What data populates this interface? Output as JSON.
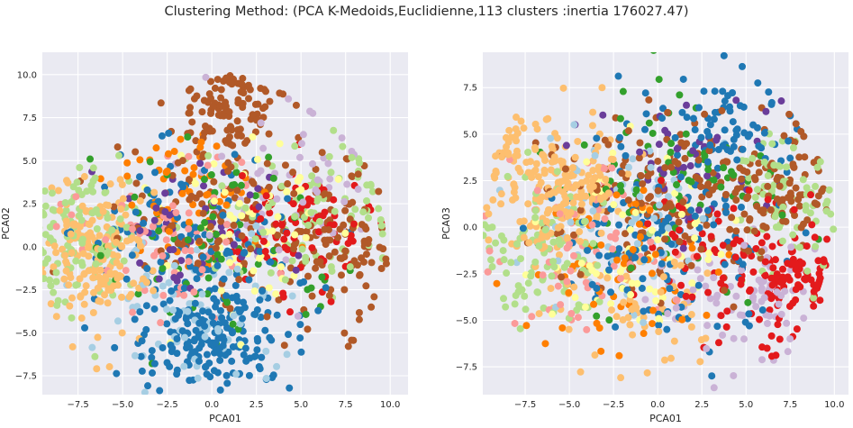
{
  "figure": {
    "suptitle": "Clustering Method: (PCA K-Medoids,Euclidienne,113 clusters :inertia 176027.47)"
  },
  "palette": [
    "#a6cee3",
    "#1f78b4",
    "#b2df8a",
    "#33a02c",
    "#fb9a99",
    "#e31a1c",
    "#fdbf6f",
    "#ff7f00",
    "#cab2d6",
    "#6a3d9a",
    "#ffff99",
    "#b15928"
  ],
  "chart_data": [
    {
      "type": "scatter",
      "xlabel": "PCA01",
      "ylabel": "PCA02",
      "xlim": [
        -9.5,
        11
      ],
      "ylim": [
        -8.6,
        11.3
      ],
      "xticks": [
        -7.5,
        -5.0,
        -2.5,
        0.0,
        2.5,
        5.0,
        7.5,
        10.0
      ],
      "xtick_labels": [
        "−7.5",
        "−5.0",
        "−2.5",
        "0.0",
        "2.5",
        "5.0",
        "7.5",
        "10.0"
      ],
      "yticks": [
        -7.5,
        -5.0,
        -2.5,
        0.0,
        2.5,
        5.0,
        7.5,
        10.0
      ],
      "ytick_labels": [
        "−7.5",
        "−5.0",
        "−2.5",
        "0.0",
        "2.5",
        "5.0",
        "7.5",
        "10.0"
      ],
      "grid": true,
      "clusters": [
        {
          "color": "#b15928",
          "cx": 1.0,
          "cy": 8.0,
          "sx": 1.6,
          "sy": 1.4,
          "n": 110
        },
        {
          "color": "#b15928",
          "cx": 7.0,
          "cy": 0.0,
          "sx": 1.5,
          "sy": 2.0,
          "n": 110
        },
        {
          "color": "#1f78b4",
          "cx": 0.0,
          "cy": -5.5,
          "sx": 2.3,
          "sy": 1.4,
          "n": 170
        },
        {
          "color": "#1f78b4",
          "cx": -2.5,
          "cy": 1.0,
          "sx": 2.5,
          "sy": 2.5,
          "n": 80
        },
        {
          "color": "#fdbf6f",
          "cx": -6.5,
          "cy": -0.5,
          "sx": 1.5,
          "sy": 2.2,
          "n": 180
        },
        {
          "color": "#b2df8a",
          "cx": -7.0,
          "cy": 1.0,
          "sx": 1.7,
          "sy": 2.2,
          "n": 120
        },
        {
          "color": "#b2df8a",
          "cx": 6.0,
          "cy": 2.0,
          "sx": 2.5,
          "sy": 2.0,
          "n": 90
        },
        {
          "color": "#e31a1c",
          "cx": 5.0,
          "cy": 1.0,
          "sx": 2.0,
          "sy": 2.0,
          "n": 90
        },
        {
          "color": "#a6cee3",
          "cx": -0.5,
          "cy": -4.0,
          "sx": 2.8,
          "sy": 2.0,
          "n": 80
        },
        {
          "color": "#33a02c",
          "cx": 0.0,
          "cy": 0.0,
          "sx": 3.0,
          "sy": 3.0,
          "n": 80
        },
        {
          "color": "#ff7f00",
          "cx": -1.0,
          "cy": 3.0,
          "sx": 2.5,
          "sy": 2.0,
          "n": 60
        },
        {
          "color": "#fb9a99",
          "cx": -3.0,
          "cy": 1.0,
          "sx": 3.0,
          "sy": 2.5,
          "n": 70
        },
        {
          "color": "#cab2d6",
          "cx": 4.0,
          "cy": 4.0,
          "sx": 3.0,
          "sy": 2.5,
          "n": 60
        },
        {
          "color": "#6a3d9a",
          "cx": 0.0,
          "cy": 1.0,
          "sx": 2.5,
          "sy": 2.0,
          "n": 50
        },
        {
          "color": "#ffff99",
          "cx": 2.0,
          "cy": 1.0,
          "sx": 3.0,
          "sy": 2.5,
          "n": 70
        },
        {
          "color": "#b15928",
          "cx": 0.5,
          "cy": 1.5,
          "sx": 3.0,
          "sy": 2.5,
          "n": 110
        },
        {
          "color": "#1f78b4",
          "cx": 1.5,
          "cy": -2.0,
          "sx": 2.0,
          "sy": 2.0,
          "n": 60
        }
      ]
    },
    {
      "type": "scatter",
      "xlabel": "PCA01",
      "ylabel": "PCA03",
      "xlim": [
        -9.9,
        10.8
      ],
      "ylim": [
        -9.0,
        9.4
      ],
      "xticks": [
        -7.5,
        -5.0,
        -2.5,
        0.0,
        2.5,
        5.0,
        7.5,
        10.0
      ],
      "xtick_labels": [
        "−7.5",
        "−5.0",
        "−2.5",
        "0.0",
        "2.5",
        "5.0",
        "7.5",
        "10.0"
      ],
      "yticks": [
        -7.5,
        -5.0,
        -2.5,
        0.0,
        2.5,
        5.0,
        7.5
      ],
      "ytick_labels": [
        "−7.5",
        "−5.0",
        "−2.5",
        "0.0",
        "2.5",
        "5.0",
        "7.5"
      ],
      "grid": true,
      "clusters": [
        {
          "color": "#fdbf6f",
          "cx": -6.0,
          "cy": 2.5,
          "sx": 2.0,
          "sy": 2.0,
          "n": 220
        },
        {
          "color": "#b2df8a",
          "cx": -6.5,
          "cy": -1.5,
          "sx": 1.8,
          "sy": 2.0,
          "n": 100
        },
        {
          "color": "#b2df8a",
          "cx": 7.5,
          "cy": 1.0,
          "sx": 1.5,
          "sy": 2.0,
          "n": 80
        },
        {
          "color": "#e31a1c",
          "cx": 7.0,
          "cy": -3.0,
          "sx": 1.8,
          "sy": 1.5,
          "n": 100
        },
        {
          "color": "#1f78b4",
          "cx": 4.0,
          "cy": 5.0,
          "sx": 2.2,
          "sy": 1.8,
          "n": 90
        },
        {
          "color": "#1f78b4",
          "cx": 0.0,
          "cy": -1.0,
          "sx": 3.0,
          "sy": 2.5,
          "n": 120
        },
        {
          "color": "#b15928",
          "cx": 0.0,
          "cy": 1.5,
          "sx": 3.5,
          "sy": 2.5,
          "n": 180
        },
        {
          "color": "#b15928",
          "cx": 7.0,
          "cy": 2.0,
          "sx": 1.8,
          "sy": 1.5,
          "n": 80
        },
        {
          "color": "#cab2d6",
          "cx": 5.0,
          "cy": -4.0,
          "sx": 2.2,
          "sy": 1.5,
          "n": 80
        },
        {
          "color": "#33a02c",
          "cx": 0.5,
          "cy": 2.0,
          "sx": 3.0,
          "sy": 2.5,
          "n": 80
        },
        {
          "color": "#a6cee3",
          "cx": -2.0,
          "cy": 0.5,
          "sx": 3.0,
          "sy": 2.5,
          "n": 70
        },
        {
          "color": "#fb9a99",
          "cx": -4.0,
          "cy": -0.5,
          "sx": 2.5,
          "sy": 2.5,
          "n": 70
        },
        {
          "color": "#ff7f00",
          "cx": -1.5,
          "cy": -3.5,
          "sx": 2.5,
          "sy": 2.5,
          "n": 60
        },
        {
          "color": "#6a3d9a",
          "cx": 1.0,
          "cy": 3.0,
          "sx": 2.5,
          "sy": 2.0,
          "n": 50
        },
        {
          "color": "#ffff99",
          "cx": -1.0,
          "cy": -1.0,
          "sx": 3.0,
          "sy": 2.5,
          "n": 70
        },
        {
          "color": "#fdbf6f",
          "cx": -1.5,
          "cy": -4.5,
          "sx": 2.5,
          "sy": 1.8,
          "n": 60
        },
        {
          "color": "#e31a1c",
          "cx": 3.0,
          "cy": -1.0,
          "sx": 2.5,
          "sy": 2.0,
          "n": 60
        }
      ]
    }
  ]
}
